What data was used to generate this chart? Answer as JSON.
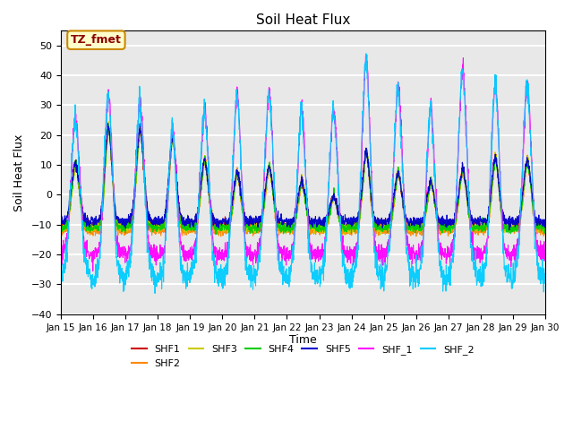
{
  "title": "Soil Heat Flux",
  "xlabel": "Time",
  "ylabel": "Soil Heat Flux",
  "ylim": [
    -40,
    55
  ],
  "yticks": [
    -40,
    -30,
    -20,
    -10,
    0,
    10,
    20,
    30,
    40,
    50
  ],
  "x_tick_labels": [
    "Jan 15",
    "Jan 16",
    "Jan 17",
    "Jan 18",
    "Jan 19",
    "Jan 20",
    "Jan 21",
    "Jan 22",
    "Jan 23",
    "Jan 24",
    "Jan 25",
    "Jan 26",
    "Jan 27",
    "Jan 28",
    "Jan 29",
    "Jan 30"
  ],
  "series_colors": {
    "SHF1": "#cc0000",
    "SHF2": "#ff8800",
    "SHF3": "#cccc00",
    "SHF4": "#00cc00",
    "SHF5": "#0000cc",
    "SHF_1": "#ff00ff",
    "SHF_2": "#00ccff"
  },
  "annotation_text": "TZ_fmet",
  "annotation_box_color": "#ffffcc",
  "annotation_box_edge": "#cc8800",
  "plot_bg_color": "#e8e8e8",
  "grid_color": "white",
  "n_days": 15,
  "pts_per_day": 144,
  "peak_day_fracs": [
    0.45,
    0.47,
    0.45,
    0.46,
    0.45,
    0.46,
    0.45,
    0.46,
    0.45,
    0.46,
    0.45,
    0.46,
    0.45,
    0.46,
    0.45
  ],
  "peak_widths": [
    0.12,
    0.1,
    0.11,
    0.1,
    0.11,
    0.1,
    0.11,
    0.1,
    0.11,
    0.1,
    0.11,
    0.1,
    0.11,
    0.1,
    0.11
  ],
  "day_peak_amps_shf15": [
    11,
    23,
    22,
    20,
    12,
    8,
    10,
    5,
    0,
    15,
    8,
    5,
    9,
    13,
    12
  ],
  "day_peak_amps_shf1": [
    27,
    35,
    32,
    24,
    30,
    35,
    35,
    30,
    30,
    47,
    37,
    31,
    43,
    39,
    38
  ],
  "day_peak_amps_shf2": [
    27,
    35,
    32,
    24,
    30,
    35,
    35,
    30,
    30,
    47,
    37,
    31,
    43,
    39,
    38
  ],
  "night_floor_shf15": -10,
  "night_floor_shf1": -20,
  "night_floor_shf2": -28
}
